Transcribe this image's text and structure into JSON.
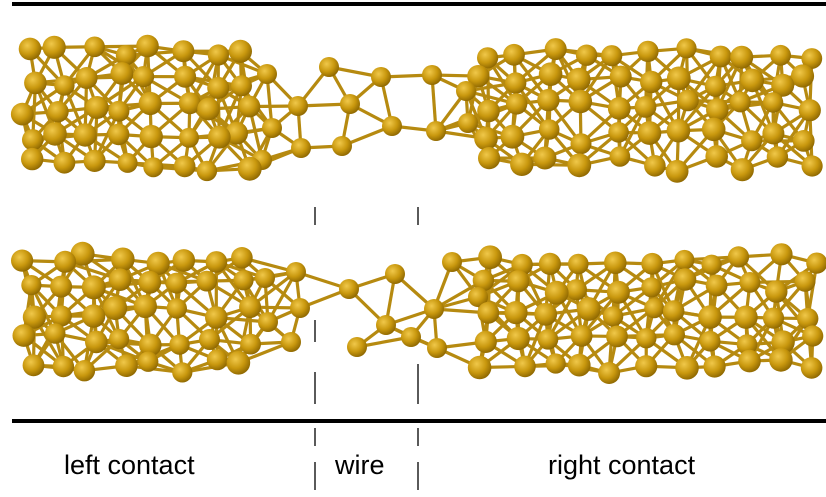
{
  "labels": {
    "left": "left contact",
    "wire": "wire",
    "right": "right contact"
  },
  "colors": {
    "atom_fill": "#c9980e",
    "atom_highlight": "#f0c84a",
    "atom_shadow": "#8a6400",
    "bond": "#b68a10",
    "line": "#000000"
  }
}
